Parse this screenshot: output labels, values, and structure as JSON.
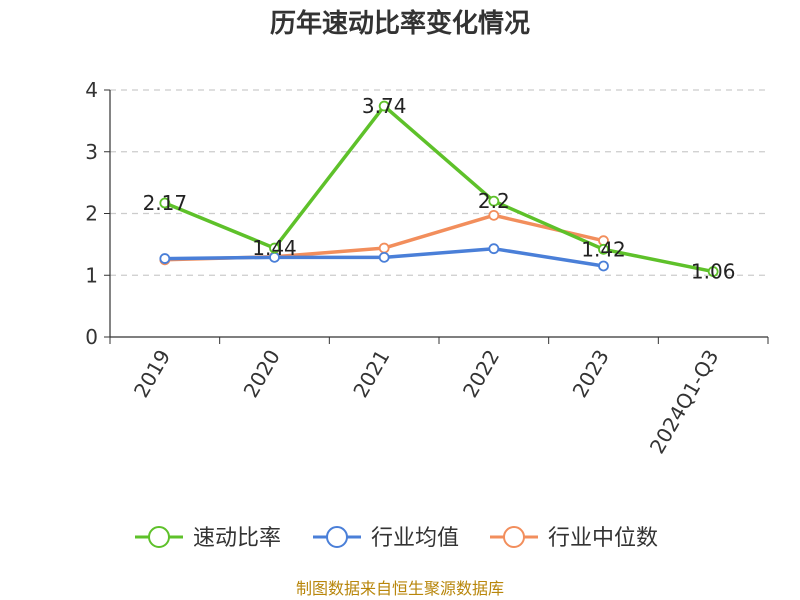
{
  "chart_data": {
    "type": "line",
    "title": "历年速动比率变化情况",
    "categories": [
      "2019",
      "2020",
      "2021",
      "2022",
      "2023",
      "2024Q1-Q3"
    ],
    "ylim": [
      0,
      4
    ],
    "yticks": [
      "0",
      "1",
      "2",
      "3",
      "4"
    ],
    "grid": "horizontal-dashed",
    "legend_position": "bottom",
    "series": [
      {
        "name": "速动比率",
        "color": "#5ec12a",
        "values": [
          2.17,
          1.44,
          3.74,
          2.2,
          1.42,
          1.06
        ],
        "labels": [
          "2.17",
          "1.44",
          "3.74",
          "2.2",
          "1.42",
          "1.06"
        ]
      },
      {
        "name": "行业均值",
        "color": "#4a7fd8",
        "values": [
          1.27,
          1.29,
          1.29,
          1.43,
          1.15,
          null
        ]
      },
      {
        "name": "行业中位数",
        "color": "#f28e5c",
        "values": [
          1.25,
          1.3,
          1.44,
          1.97,
          1.56,
          null
        ]
      }
    ],
    "source": "制图数据来自恒生聚源数据库"
  }
}
